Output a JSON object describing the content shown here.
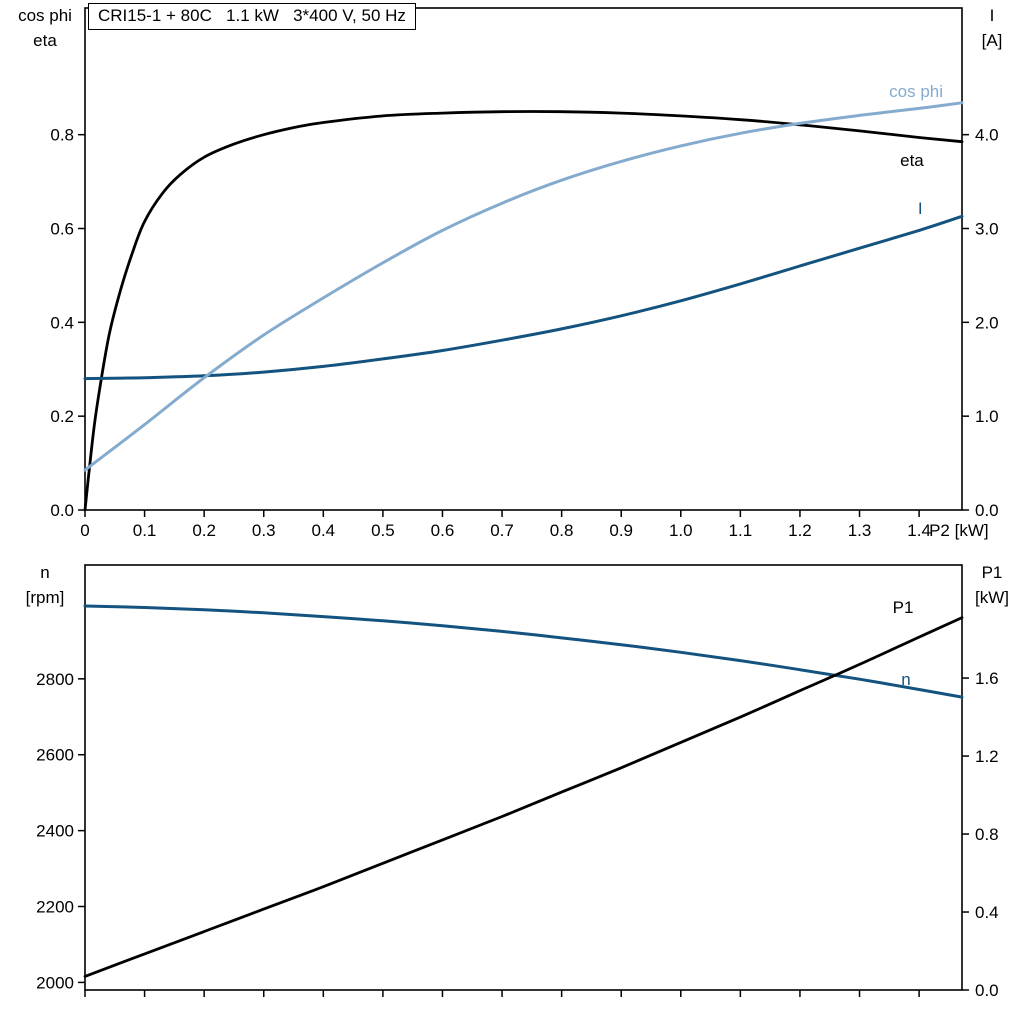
{
  "title_box": {
    "text": "CRI15-1 + 80C   1.1 kW   3*400 V, 50 Hz"
  },
  "colors": {
    "black": "#000000",
    "light_blue": "#84abce",
    "dark_blue": "#14537f",
    "axis": "#000000",
    "text": "#000000",
    "background": "#ffffff"
  },
  "chart_data": [
    {
      "type": "line",
      "id": "motor-top",
      "title": "CRI15-1 + 80C   1.1 kW   3*400 V, 50 Hz",
      "x_axis": {
        "lim": [
          0,
          1.472
        ],
        "ticks": [
          0,
          0.1,
          0.2,
          0.3,
          0.4,
          0.5,
          0.6,
          0.7,
          0.8,
          0.9,
          1.0,
          1.1,
          1.2,
          1.3,
          1.4
        ],
        "tick_labels": [
          "0",
          "0.1",
          "0.2",
          "0.3",
          "0.4",
          "0.5",
          "0.6",
          "0.7",
          "0.8",
          "0.9",
          "1.0",
          "1.1",
          "1.2",
          "1.3",
          "1.4"
        ],
        "show_labels": true,
        "end_label": "P2 [kW]"
      },
      "left_axis": {
        "title_lines": [
          "cos phi",
          "eta"
        ],
        "lim": [
          0,
          1.07
        ],
        "ticks": [
          0,
          0.2,
          0.4,
          0.6,
          0.8
        ],
        "tick_labels": [
          "0.0",
          "0.2",
          "0.4",
          "0.6",
          "0.8"
        ]
      },
      "right_axis": {
        "title_lines": [
          "I",
          "[A]"
        ],
        "lim": [
          0,
          5.35
        ],
        "ticks": [
          0,
          1,
          2,
          3,
          4
        ],
        "tick_labels": [
          "0.0",
          "1.0",
          "2.0",
          "3.0",
          "4.0"
        ]
      },
      "series": [
        {
          "name": "eta",
          "label": "eta",
          "color": "black",
          "axis": "left",
          "width": 2.8,
          "x": [
            0,
            0.01,
            0.02,
            0.04,
            0.06,
            0.08,
            0.1,
            0.13,
            0.16,
            0.2,
            0.25,
            0.3,
            0.35,
            0.4,
            0.5,
            0.6,
            0.7,
            0.8,
            0.9,
            1.0,
            1.1,
            1.2,
            1.3,
            1.4,
            1.472
          ],
          "y": [
            0,
            0.12,
            0.22,
            0.37,
            0.47,
            0.55,
            0.615,
            0.675,
            0.715,
            0.752,
            0.78,
            0.8,
            0.815,
            0.826,
            0.84,
            0.846,
            0.849,
            0.849,
            0.846,
            0.84,
            0.832,
            0.821,
            0.808,
            0.794,
            0.785
          ],
          "label_at": {
            "x": 1.388,
            "y": 0.733
          }
        },
        {
          "name": "current",
          "label": "I",
          "color": "dark_blue",
          "axis": "right",
          "width": 3,
          "x": [
            0,
            0.1,
            0.2,
            0.3,
            0.4,
            0.5,
            0.6,
            0.7,
            0.8,
            0.9,
            1.0,
            1.1,
            1.2,
            1.3,
            1.4,
            1.472
          ],
          "y": [
            1.4,
            1.41,
            1.43,
            1.47,
            1.53,
            1.61,
            1.7,
            1.81,
            1.93,
            2.07,
            2.23,
            2.41,
            2.6,
            2.79,
            2.98,
            3.13
          ],
          "label_at": {
            "x": 1.402,
            "y": 3.155
          }
        },
        {
          "name": "cos-phi",
          "label": "cos phi",
          "color": "light_blue",
          "axis": "left",
          "width": 3,
          "x": [
            0,
            0.1,
            0.2,
            0.3,
            0.4,
            0.5,
            0.6,
            0.7,
            0.8,
            0.9,
            1.0,
            1.1,
            1.2,
            1.3,
            1.4,
            1.472
          ],
          "y": [
            0.085,
            0.182,
            0.282,
            0.373,
            0.452,
            0.527,
            0.596,
            0.654,
            0.703,
            0.743,
            0.776,
            0.803,
            0.824,
            0.841,
            0.856,
            0.868
          ],
          "label_at": {
            "x": 1.395,
            "y": 0.88
          }
        }
      ]
    },
    {
      "type": "line",
      "id": "motor-bottom",
      "title": "",
      "x_axis": {
        "lim": [
          0,
          1.472
        ],
        "ticks": [
          0,
          0.1,
          0.2,
          0.3,
          0.4,
          0.5,
          0.6,
          0.7,
          0.8,
          0.9,
          1.0,
          1.1,
          1.2,
          1.3,
          1.4
        ],
        "tick_labels": [],
        "show_labels": false,
        "end_label": ""
      },
      "left_axis": {
        "title_lines": [
          "n",
          "[rpm]"
        ],
        "lim": [
          1980,
          3100
        ],
        "ticks": [
          2000,
          2200,
          2400,
          2600,
          2800
        ],
        "tick_labels": [
          "2000",
          "2200",
          "2400",
          "2600",
          "2800"
        ]
      },
      "right_axis": {
        "title_lines": [
          "P1",
          "[kW]"
        ],
        "lim": [
          0,
          2.18
        ],
        "ticks": [
          0,
          0.4,
          0.8,
          1.2,
          1.6
        ],
        "tick_labels": [
          "0.0",
          "0.4",
          "0.8",
          "1.2",
          "1.6"
        ]
      },
      "series": [
        {
          "name": "speed",
          "label": "n",
          "color": "dark_blue",
          "axis": "left",
          "width": 3,
          "x": [
            0,
            0.1,
            0.2,
            0.3,
            0.4,
            0.5,
            0.6,
            0.7,
            0.8,
            0.9,
            1.0,
            1.1,
            1.2,
            1.3,
            1.4,
            1.472
          ],
          "y": [
            2992,
            2988,
            2982,
            2974,
            2964,
            2953,
            2940,
            2925,
            2908,
            2890,
            2870,
            2848,
            2824,
            2799,
            2772,
            2752
          ],
          "label_at": {
            "x": 1.378,
            "y": 2784
          }
        },
        {
          "name": "p1",
          "label": "P1",
          "color": "black",
          "axis": "right",
          "width": 2.8,
          "x": [
            0,
            0.1,
            0.2,
            0.3,
            0.4,
            0.5,
            0.6,
            0.7,
            0.8,
            0.9,
            1.0,
            1.1,
            1.2,
            1.3,
            1.4,
            1.472
          ],
          "y": [
            0.07,
            0.185,
            0.3,
            0.415,
            0.53,
            0.65,
            0.77,
            0.89,
            1.015,
            1.14,
            1.27,
            1.4,
            1.535,
            1.67,
            1.81,
            1.91
          ],
          "label_at": {
            "x": 1.373,
            "y": 1.934
          }
        }
      ]
    }
  ]
}
